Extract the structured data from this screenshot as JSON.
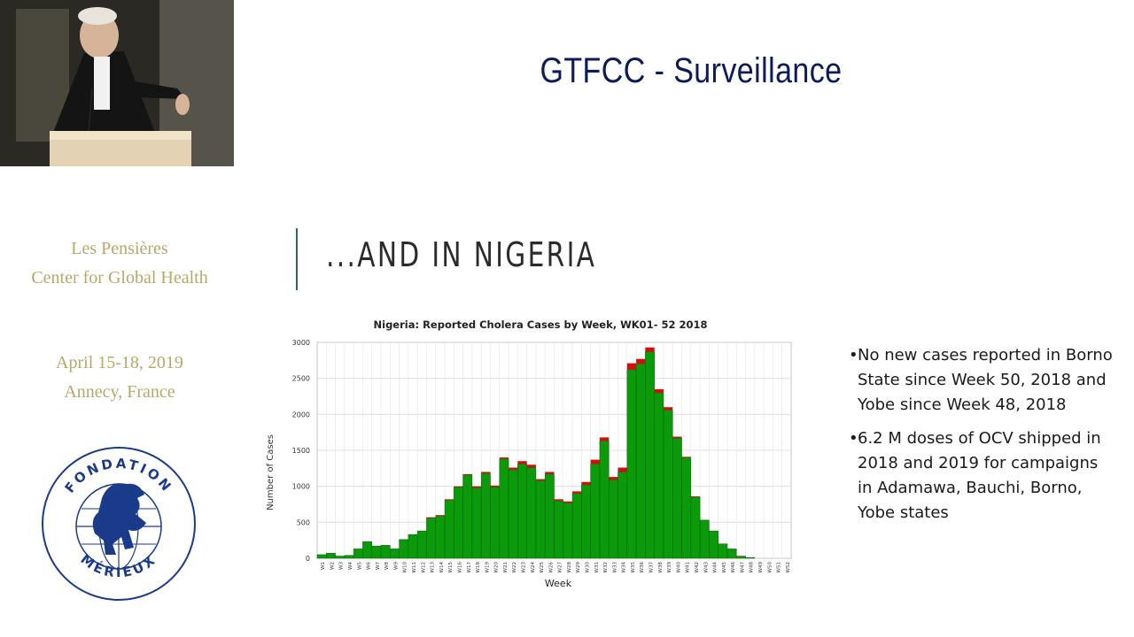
{
  "slide": {
    "title": "GTFCC - Surveillance",
    "section_heading": "...AND IN NIGERIA"
  },
  "sidebar": {
    "org_line1": "Les Pensières",
    "org_line2": "Center for Global Health",
    "event_dates": "April 15-18, 2019",
    "event_location": "Annecy, France",
    "logo_top_text": "FONDATION",
    "logo_bottom_text": "MÉRIEUX"
  },
  "bullets": [
    "No new cases reported in Borno State since Week 50, 2018 and Yobe since Week 48, 2018",
    "6.2 M doses of OCV shipped in 2018 and 2019 for campaigns in Adamawa, Bauchi, Borno, Yobe states"
  ],
  "colors": {
    "title": "#0d1b5c",
    "org_text": "#b8a76a",
    "bar_green": "#0a9a0a",
    "bar_red": "#d01010"
  },
  "chart_data": {
    "type": "bar",
    "title": "Nigeria: Reported Cholera Cases by Week, WK01- 52 2018",
    "xlabel": "Week",
    "ylabel": "Number of Cases",
    "ylim": [
      0,
      3000
    ],
    "yticks": [
      0,
      500,
      1000,
      1500,
      2000,
      2500,
      3000
    ],
    "stacked": true,
    "grid": true,
    "categories": [
      "W1",
      "W2",
      "W3",
      "W4",
      "W5",
      "W6",
      "W7",
      "W8",
      "W9",
      "W10",
      "W11",
      "W12",
      "W13",
      "W14",
      "W15",
      "W16",
      "W17",
      "W18",
      "W19",
      "W20",
      "W21",
      "W22",
      "W23",
      "W24",
      "W25",
      "W26",
      "W27",
      "W28",
      "W29",
      "W30",
      "W31",
      "W32",
      "W33",
      "W34",
      "W35",
      "W36",
      "W37",
      "W38",
      "W39",
      "W40",
      "W41",
      "W42",
      "W43",
      "W44",
      "W45",
      "W46",
      "W47",
      "W48",
      "W49",
      "W50",
      "W51",
      "W52"
    ],
    "series": [
      {
        "values": [
          50,
          70,
          30,
          40,
          130,
          230,
          170,
          180,
          130,
          260,
          330,
          380,
          560,
          590,
          810,
          990,
          1160,
          980,
          1180,
          990,
          1380,
          1230,
          1310,
          1260,
          1080,
          1170,
          800,
          770,
          900,
          1020,
          1310,
          1630,
          1090,
          1200,
          2620,
          2700,
          2870,
          2300,
          2060,
          1670,
          1400,
          850,
          530,
          380,
          200,
          130,
          30,
          10,
          0,
          0,
          0,
          0
        ]
      },
      {
        "values": [
          0,
          0,
          0,
          0,
          0,
          0,
          0,
          0,
          0,
          0,
          0,
          0,
          10,
          10,
          10,
          10,
          10,
          20,
          20,
          20,
          20,
          30,
          40,
          40,
          20,
          30,
          20,
          20,
          30,
          40,
          60,
          50,
          40,
          60,
          90,
          70,
          60,
          50,
          40,
          20,
          10,
          10,
          0,
          0,
          0,
          0,
          0,
          0,
          0,
          0,
          0,
          0
        ]
      }
    ]
  }
}
